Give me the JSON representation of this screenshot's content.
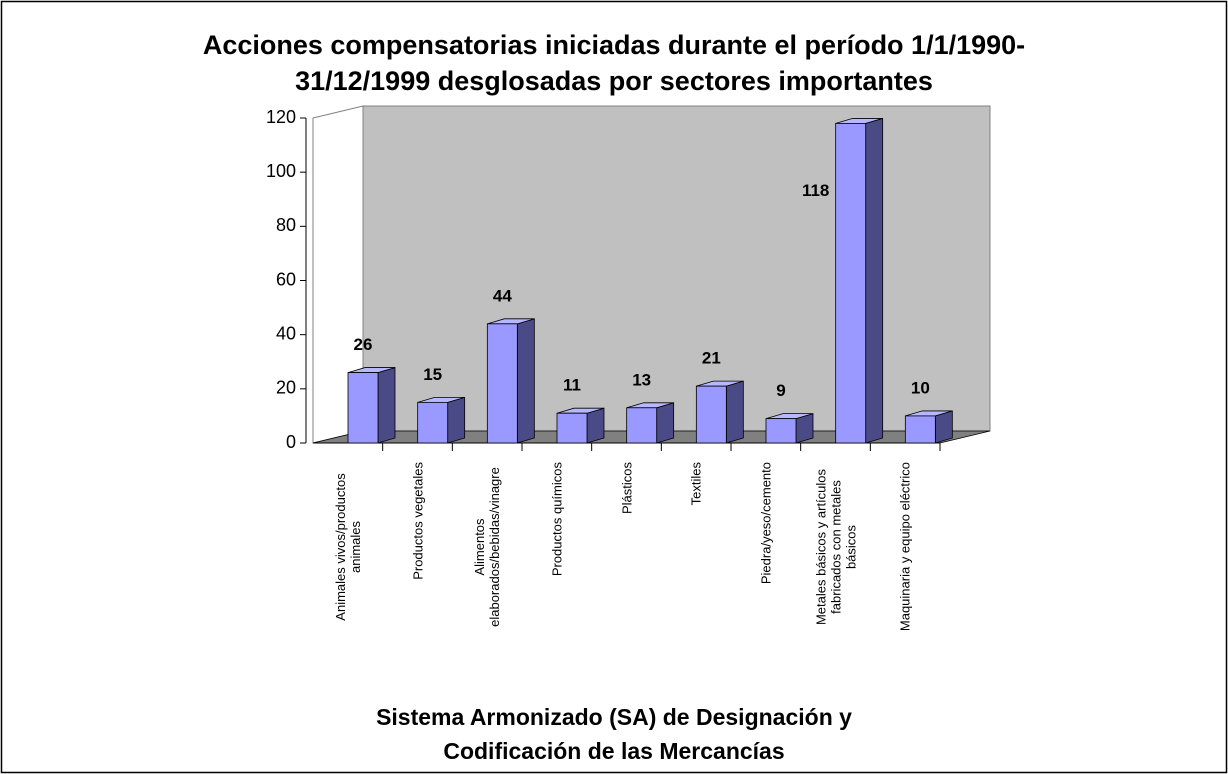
{
  "chart_data": {
    "type": "bar3d",
    "title": "Acciones compensatorias iniciadas durante el período 1/1/1990-31/12/1999 desglosadas por sectores importantes",
    "x_label": "Sistema Armonizado (SA) de Designación y Codificación de las Mercancías",
    "categories": [
      "Animales vivos/productos animales",
      "Productos vegetales",
      "Alimentos elaborados/bebidas/vinagre",
      "Productos químicos",
      "Plásticos",
      "Textiles",
      "Piedra/yeso/cemento",
      "Metales básicos y artículos fabricados con metales básicos",
      "Maquinaria y equipo eléctrico"
    ],
    "values": [
      26,
      15,
      44,
      11,
      13,
      21,
      9,
      118,
      10
    ],
    "color": "#9999ff",
    "ylim": [
      0,
      120
    ],
    "yticks": [
      0,
      20,
      40,
      60,
      80,
      100,
      120
    ],
    "grid": false
  }
}
